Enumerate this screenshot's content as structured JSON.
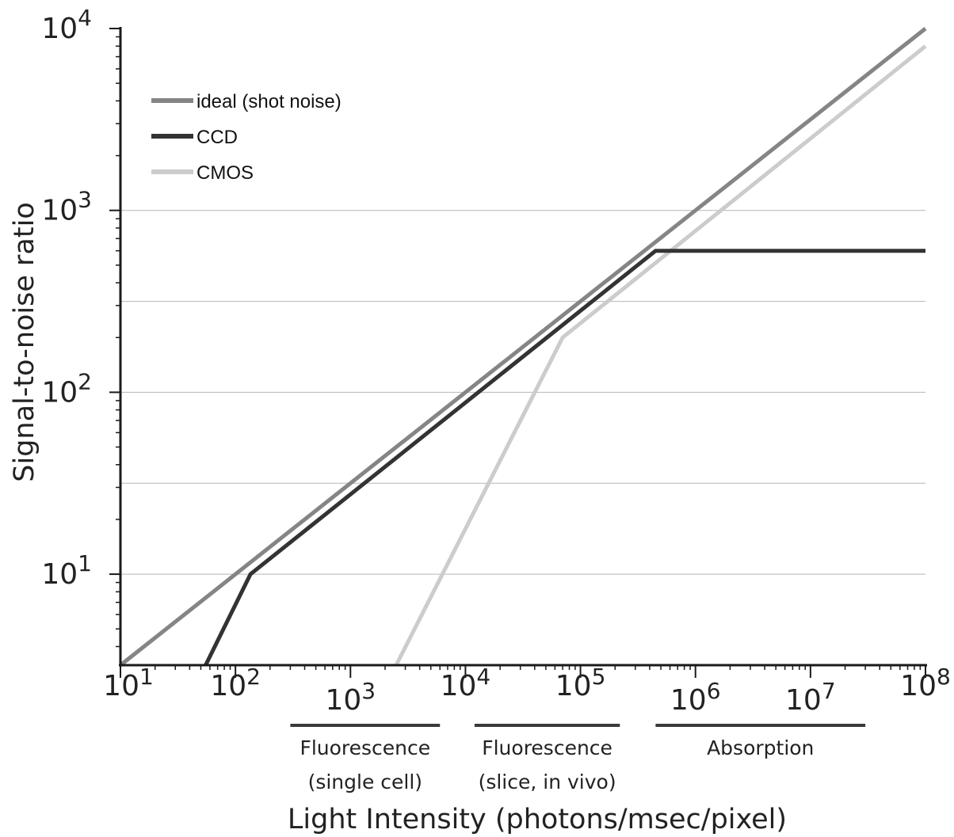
{
  "chart_data": {
    "type": "line",
    "title": "",
    "xlabel": "Light Intensity (photons/msec/pixel)",
    "ylabel": "Signal-to-noise ratio",
    "x_scale": "log",
    "y_scale": "log",
    "xlim": [
      10,
      100000000
    ],
    "ylim": [
      3.16,
      10000
    ],
    "x_ticks": [
      {
        "value": 10,
        "base": "10",
        "exp": "1"
      },
      {
        "value": 100,
        "base": "10",
        "exp": "2"
      },
      {
        "value": 1000,
        "base": "10",
        "exp": "3"
      },
      {
        "value": 10000,
        "base": "10",
        "exp": "4"
      },
      {
        "value": 100000,
        "base": "10",
        "exp": "5"
      },
      {
        "value": 1000000,
        "base": "10",
        "exp": "6"
      },
      {
        "value": 10000000,
        "base": "10",
        "exp": "7"
      },
      {
        "value": 100000000,
        "base": "10",
        "exp": "8"
      }
    ],
    "y_ticks": [
      {
        "value": 10,
        "base": "10",
        "exp": "1"
      },
      {
        "value": 100,
        "base": "10",
        "exp": "2"
      },
      {
        "value": 1000,
        "base": "10",
        "exp": "3"
      },
      {
        "value": 10000,
        "base": "10",
        "exp": "4"
      }
    ],
    "gridlines_y": [
      10,
      31.6,
      100,
      316,
      1000
    ],
    "legend_position": "top-left",
    "series": [
      {
        "name": "ideal (shot noise)",
        "color": "#858585",
        "points": [
          [
            10,
            3.16
          ],
          [
            100000000,
            10000
          ]
        ]
      },
      {
        "name": "CCD",
        "color": "#333333",
        "points": [
          [
            55,
            3.16
          ],
          [
            135,
            10
          ],
          [
            450000,
            600
          ],
          [
            100000000,
            600
          ]
        ]
      },
      {
        "name": "CMOS",
        "color": "#cccccc",
        "points": [
          [
            2500,
            3.16
          ],
          [
            70000,
            200
          ],
          [
            100000000,
            8000
          ]
        ]
      }
    ],
    "ranges": [
      {
        "from": 300,
        "to": 6000,
        "line1": "Fluorescence",
        "line2": "(single cell)"
      },
      {
        "from": 12000,
        "to": 220000,
        "line1": "Fluorescence",
        "line2": "(slice, in vivo)"
      },
      {
        "from": 450000,
        "to": 30000000,
        "line1": "Absorption",
        "line2": ""
      }
    ]
  }
}
